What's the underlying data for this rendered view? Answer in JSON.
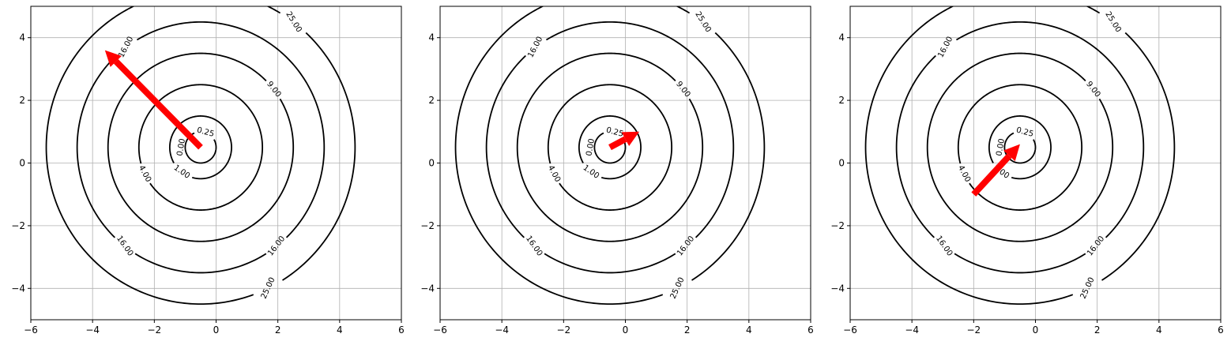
{
  "chart_data": [
    {
      "type": "contour",
      "title": "",
      "xlabel": "",
      "ylabel": "",
      "xlim": [
        -6,
        6
      ],
      "ylim": [
        -5,
        5
      ],
      "grid": true,
      "xticks": [
        -6,
        -4,
        -2,
        0,
        2,
        4,
        6
      ],
      "yticks": [
        -4,
        -2,
        0,
        2,
        4
      ],
      "xtick_labels": [
        "−6",
        "−4",
        "−2",
        "0",
        "2",
        "4",
        "6"
      ],
      "ytick_labels": [
        "−4",
        "−2",
        "0",
        "2",
        "4"
      ],
      "contour_center": [
        -0.5,
        0.5
      ],
      "contour_levels": [
        0.25,
        1,
        4,
        9,
        16,
        25
      ],
      "contour_level_labels": [
        "0.00",
        "0.25",
        "1.00",
        "4.00",
        "9.00",
        "16.00",
        "25.00"
      ],
      "arrow": {
        "from": [
          -0.5,
          0.5
        ],
        "to": [
          -3.6,
          3.6
        ]
      }
    },
    {
      "type": "contour",
      "title": "",
      "xlabel": "",
      "ylabel": "",
      "xlim": [
        -6,
        6
      ],
      "ylim": [
        -5,
        5
      ],
      "grid": true,
      "xticks": [
        -6,
        -4,
        -2,
        0,
        2,
        4,
        6
      ],
      "yticks": [
        -4,
        -2,
        0,
        2,
        4
      ],
      "xtick_labels": [
        "−6",
        "−4",
        "−2",
        "0",
        "2",
        "4",
        "6"
      ],
      "ytick_labels": [
        "−4",
        "−2",
        "0",
        "2",
        "4"
      ],
      "contour_center": [
        -0.5,
        0.5
      ],
      "contour_levels": [
        0.25,
        1,
        4,
        9,
        16,
        25
      ],
      "contour_level_labels": [
        "0.00",
        "0.25",
        "1.00",
        "4.00",
        "9.00",
        "16.00",
        "25.00"
      ],
      "arrow": {
        "from": [
          -0.5,
          0.5
        ],
        "to": [
          0.45,
          1.0
        ]
      }
    },
    {
      "type": "contour",
      "title": "",
      "xlabel": "",
      "ylabel": "",
      "xlim": [
        -6,
        6
      ],
      "ylim": [
        -5,
        5
      ],
      "grid": true,
      "xticks": [
        -6,
        -4,
        -2,
        0,
        2,
        4,
        6
      ],
      "yticks": [
        -4,
        -2,
        0,
        2,
        4
      ],
      "xtick_labels": [
        "−6",
        "−4",
        "−2",
        "0",
        "2",
        "4",
        "6"
      ],
      "ytick_labels": [
        "−4",
        "−2",
        "0",
        "2",
        "4"
      ],
      "contour_center": [
        -0.5,
        0.5
      ],
      "contour_levels": [
        0.25,
        1,
        4,
        9,
        16,
        25
      ],
      "contour_level_labels": [
        "0.00",
        "0.25",
        "1.00",
        "4.00",
        "9.00",
        "16.00",
        "25.00"
      ],
      "arrow": {
        "from": [
          -2.0,
          -1.0
        ],
        "to": [
          -0.5,
          0.6
        ]
      }
    }
  ],
  "colors": {
    "contour": "#000000",
    "grid": "#b0b0b0",
    "arrow": "#ff0000",
    "axes": "#000000",
    "background": "#ffffff"
  }
}
